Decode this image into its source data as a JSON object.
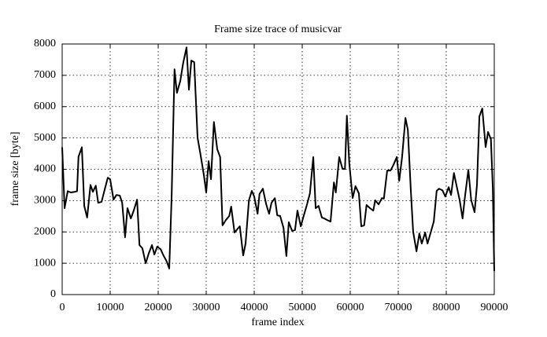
{
  "chart_data": {
    "type": "line",
    "title": "Frame size trace of musicvar",
    "x_label": "frame index",
    "y_label": "frame size [byte]",
    "x": [
      0,
      500,
      1150,
      1800,
      2600,
      3100,
      3400,
      4100,
      4600,
      5200,
      5900,
      6400,
      7000,
      7500,
      8200,
      8900,
      9500,
      10000,
      10700,
      11300,
      12000,
      12500,
      13100,
      13600,
      14300,
      14900,
      15600,
      16100,
      16700,
      17400,
      18000,
      18700,
      19200,
      19800,
      20500,
      21100,
      21800,
      22300,
      22800,
      23400,
      23900,
      24600,
      25200,
      25900,
      26400,
      26900,
      27500,
      28200,
      28900,
      29500,
      30000,
      30500,
      31000,
      31600,
      32300,
      32900,
      33400,
      34100,
      34800,
      35200,
      35900,
      36600,
      37000,
      37700,
      38200,
      38900,
      39500,
      40000,
      40700,
      41100,
      41800,
      42500,
      43100,
      43600,
      44300,
      44800,
      45400,
      46100,
      46700,
      47200,
      47900,
      48500,
      49000,
      49700,
      50300,
      51000,
      51600,
      52300,
      52800,
      53400,
      54100,
      54600,
      55200,
      55900,
      56600,
      57000,
      57700,
      58400,
      58900,
      59300,
      59800,
      60500,
      61100,
      61800,
      62300,
      62900,
      63400,
      64100,
      64800,
      65200,
      65900,
      66600,
      67000,
      67700,
      68400,
      69000,
      69700,
      70200,
      70800,
      71500,
      72000,
      72600,
      73100,
      73800,
      74400,
      74900,
      75600,
      76100,
      76700,
      77400,
      78000,
      78500,
      79200,
      79800,
      80500,
      81000,
      81600,
      82100,
      82800,
      83400,
      83900,
      84600,
      85200,
      85900,
      86400,
      86900,
      87500,
      88200,
      88700,
      89300,
      89700,
      90000
    ],
    "series": [
      {
        "name": "musicvar",
        "color": "#000000",
        "values": [
          4700,
          2760,
          3300,
          3260,
          3280,
          3300,
          4400,
          4700,
          2830,
          2460,
          3500,
          3280,
          3480,
          2930,
          2960,
          3380,
          3730,
          3680,
          3030,
          3180,
          3160,
          2930,
          1830,
          2760,
          2430,
          2680,
          3030,
          1580,
          1480,
          1000,
          1300,
          1580,
          1280,
          1530,
          1450,
          1250,
          1050,
          830,
          3130,
          7190,
          6440,
          6820,
          7390,
          7890,
          6540,
          7470,
          7420,
          5010,
          4390,
          3830,
          3260,
          4260,
          3680,
          5510,
          4640,
          4390,
          2210,
          2380,
          2510,
          2810,
          1980,
          2110,
          2180,
          1250,
          1630,
          3010,
          3310,
          3130,
          2580,
          3210,
          3380,
          2880,
          2580,
          2930,
          3080,
          2530,
          2510,
          2130,
          1230,
          2310,
          2030,
          2060,
          2680,
          2180,
          2510,
          2880,
          3230,
          4390,
          2760,
          2830,
          2460,
          2430,
          2380,
          2330,
          3580,
          3260,
          4390,
          4010,
          4010,
          5710,
          4190,
          3080,
          3460,
          3230,
          2180,
          2210,
          2860,
          2760,
          2680,
          3010,
          2880,
          3080,
          3060,
          3960,
          3960,
          4140,
          4390,
          3630,
          4390,
          5640,
          5260,
          3380,
          2010,
          1380,
          1950,
          1630,
          1980,
          1630,
          1950,
          2330,
          3310,
          3380,
          3330,
          3130,
          3430,
          3180,
          3880,
          3510,
          3010,
          2430,
          3130,
          3980,
          3010,
          2630,
          3510,
          5690,
          5940,
          4710,
          5190,
          4960,
          3380,
          750
        ]
      }
    ],
    "xlim": [
      0,
      90000
    ],
    "xticks": [
      0,
      10000,
      20000,
      30000,
      40000,
      50000,
      60000,
      70000,
      80000,
      90000
    ],
    "ylim": [
      0,
      8000
    ],
    "yticks": [
      0,
      1000,
      2000,
      3000,
      4000,
      5000,
      6000,
      7000,
      8000
    ],
    "grid": true
  }
}
